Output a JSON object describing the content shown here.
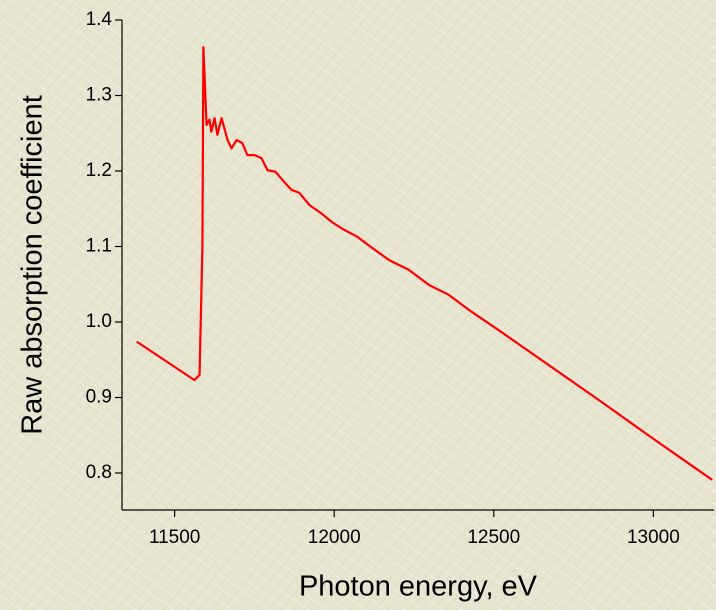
{
  "chart_data": {
    "type": "line",
    "xlabel": "Photon energy, eV",
    "ylabel": "Raw absorption coefficient",
    "x": [
      11381,
      11562,
      11578,
      11587,
      11590,
      11600,
      11609,
      11615,
      11625,
      11634,
      11647,
      11666,
      11678,
      11694,
      11712,
      11728,
      11750,
      11772,
      11791,
      11816,
      11838,
      11866,
      11891,
      11922,
      11959,
      11994,
      12031,
      12072,
      12116,
      12172,
      12234,
      12297,
      12359,
      12422,
      12516,
      12672,
      12828,
      12984,
      13184
    ],
    "series": [
      {
        "color": "#ff0000",
        "values": [
          0.974,
          0.923,
          0.93,
          1.1,
          1.364,
          1.261,
          1.268,
          1.252,
          1.27,
          1.248,
          1.27,
          1.241,
          1.23,
          1.241,
          1.237,
          1.221,
          1.221,
          1.217,
          1.201,
          1.199,
          1.188,
          1.175,
          1.171,
          1.155,
          1.144,
          1.132,
          1.122,
          1.113,
          1.099,
          1.082,
          1.069,
          1.049,
          1.036,
          1.016,
          0.989,
          0.943,
          0.897,
          0.85,
          0.791
        ]
      }
    ],
    "xlim": [
      11335,
      13190
    ],
    "ylim": [
      0.751,
      1.4
    ],
    "xticks": [
      11500,
      12000,
      12500,
      13000
    ],
    "yticks": [
      0.8,
      0.9,
      {
        "value": 1,
        "label": "1.0"
      },
      1.1,
      1.2,
      1.3,
      1.4
    ]
  }
}
